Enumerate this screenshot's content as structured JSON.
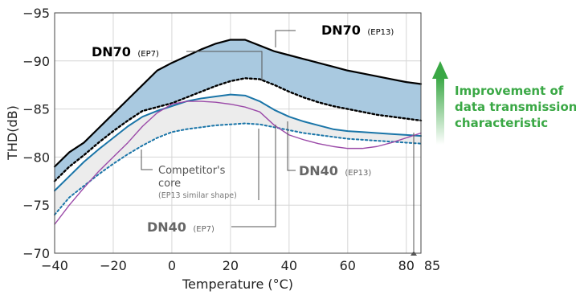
{
  "colors": {
    "dn70": "#000000",
    "dn40": "#1a75a8",
    "competitor": "#9b4aa8",
    "band_dn70": "#a9c9e0",
    "band_dn40": "#ececec",
    "improvement": "#3aa845",
    "callout": "#555555"
  },
  "chart_data": {
    "type": "line",
    "xlabel": "Temperature (°C)",
    "ylabel": "THD(dB)",
    "xlim": [
      -40,
      85
    ],
    "ylim": [
      -70,
      -95
    ],
    "x_ticks": [
      "−40",
      "−20",
      "0",
      "20",
      "40",
      "60",
      "80"
    ],
    "x_extra_tick": "85",
    "y_ticks": [
      "−70",
      "−75",
      "−80",
      "−85",
      "−90",
      "−95"
    ],
    "grid": true,
    "series": [
      {
        "name": "DN70 (EP13)",
        "style": "solid",
        "x": [
          -40,
          -35,
          -30,
          -25,
          -20,
          -15,
          -10,
          -5,
          0,
          5,
          10,
          15,
          20,
          25,
          30,
          35,
          40,
          45,
          50,
          55,
          60,
          65,
          70,
          75,
          80,
          85
        ],
        "y": [
          -79,
          -80.5,
          -81.5,
          -83,
          -84.5,
          -86,
          -87.5,
          -89,
          -89.8,
          -90.5,
          -91.2,
          -91.8,
          -92.2,
          -92.2,
          -91.6,
          -91,
          -90.6,
          -90.2,
          -89.8,
          -89.4,
          -89,
          -88.7,
          -88.4,
          -88.1,
          -87.8,
          -87.6
        ]
      },
      {
        "name": "DN70 (EP7)",
        "style": "dotted",
        "x": [
          -40,
          -35,
          -30,
          -25,
          -20,
          -15,
          -10,
          -5,
          0,
          5,
          10,
          15,
          20,
          25,
          30,
          35,
          40,
          45,
          50,
          55,
          60,
          65,
          70,
          75,
          80,
          85
        ],
        "y": [
          -77.5,
          -79,
          -80.2,
          -81.5,
          -82.7,
          -83.8,
          -84.8,
          -85.2,
          -85.6,
          -86.2,
          -86.8,
          -87.4,
          -87.9,
          -88.2,
          -88.1,
          -87.5,
          -86.8,
          -86.2,
          -85.7,
          -85.3,
          -85,
          -84.7,
          -84.4,
          -84.2,
          -84,
          -83.8
        ]
      },
      {
        "name": "DN40 (EP13)",
        "style": "solid",
        "x": [
          -40,
          -35,
          -30,
          -25,
          -20,
          -15,
          -10,
          -5,
          0,
          5,
          10,
          15,
          20,
          25,
          30,
          35,
          40,
          45,
          50,
          55,
          60,
          65,
          70,
          75,
          80,
          85
        ],
        "y": [
          -76.5,
          -78,
          -79.5,
          -80.8,
          -82,
          -83.2,
          -84.2,
          -84.8,
          -85.3,
          -85.8,
          -86.1,
          -86.3,
          -86.5,
          -86.4,
          -85.8,
          -84.9,
          -84.2,
          -83.7,
          -83.3,
          -82.9,
          -82.7,
          -82.6,
          -82.5,
          -82.4,
          -82.3,
          -82.2
        ]
      },
      {
        "name": "DN40 (EP7)",
        "style": "dotted",
        "x": [
          -40,
          -35,
          -30,
          -25,
          -20,
          -15,
          -10,
          -5,
          0,
          5,
          10,
          15,
          20,
          25,
          30,
          35,
          40,
          45,
          50,
          55,
          60,
          65,
          70,
          75,
          80,
          85
        ],
        "y": [
          -74,
          -75.8,
          -77,
          -78.2,
          -79.3,
          -80.3,
          -81.2,
          -82,
          -82.6,
          -82.9,
          -83.1,
          -83.3,
          -83.4,
          -83.5,
          -83.4,
          -83.1,
          -82.8,
          -82.5,
          -82.3,
          -82.1,
          -81.9,
          -81.8,
          -81.7,
          -81.6,
          -81.5,
          -81.4
        ]
      },
      {
        "name": "Competitor's core",
        "style": "solid",
        "x": [
          -40,
          -35,
          -30,
          -25,
          -20,
          -15,
          -10,
          -5,
          0,
          5,
          10,
          15,
          20,
          25,
          30,
          35,
          40,
          45,
          50,
          55,
          60,
          65,
          70,
          75,
          80,
          85
        ],
        "y": [
          -73,
          -75,
          -76.8,
          -78.5,
          -80,
          -81.5,
          -83.2,
          -84.6,
          -85.5,
          -85.8,
          -85.8,
          -85.7,
          -85.5,
          -85.2,
          -84.7,
          -83.3,
          -82.3,
          -81.8,
          -81.4,
          -81.1,
          -80.9,
          -80.9,
          -81.1,
          -81.5,
          -82,
          -82.5
        ]
      }
    ]
  },
  "labels": {
    "dn70_ep13_main": "DN70",
    "dn70_ep13_sub": "(EP13)",
    "dn70_ep7_main": "DN70",
    "dn70_ep7_sub": "(EP7)",
    "dn40_ep13_main": "DN40",
    "dn40_ep13_sub": "(EP13)",
    "dn40_ep7_main": "DN40",
    "dn40_ep7_sub": "(EP7)",
    "competitor_line1": "Competitor's",
    "competitor_line2": "core",
    "competitor_note": "(EP13 similar shape)",
    "improvement_line1": "Improvement of",
    "improvement_line2": "data transmission",
    "improvement_line3": "characteristic"
  }
}
